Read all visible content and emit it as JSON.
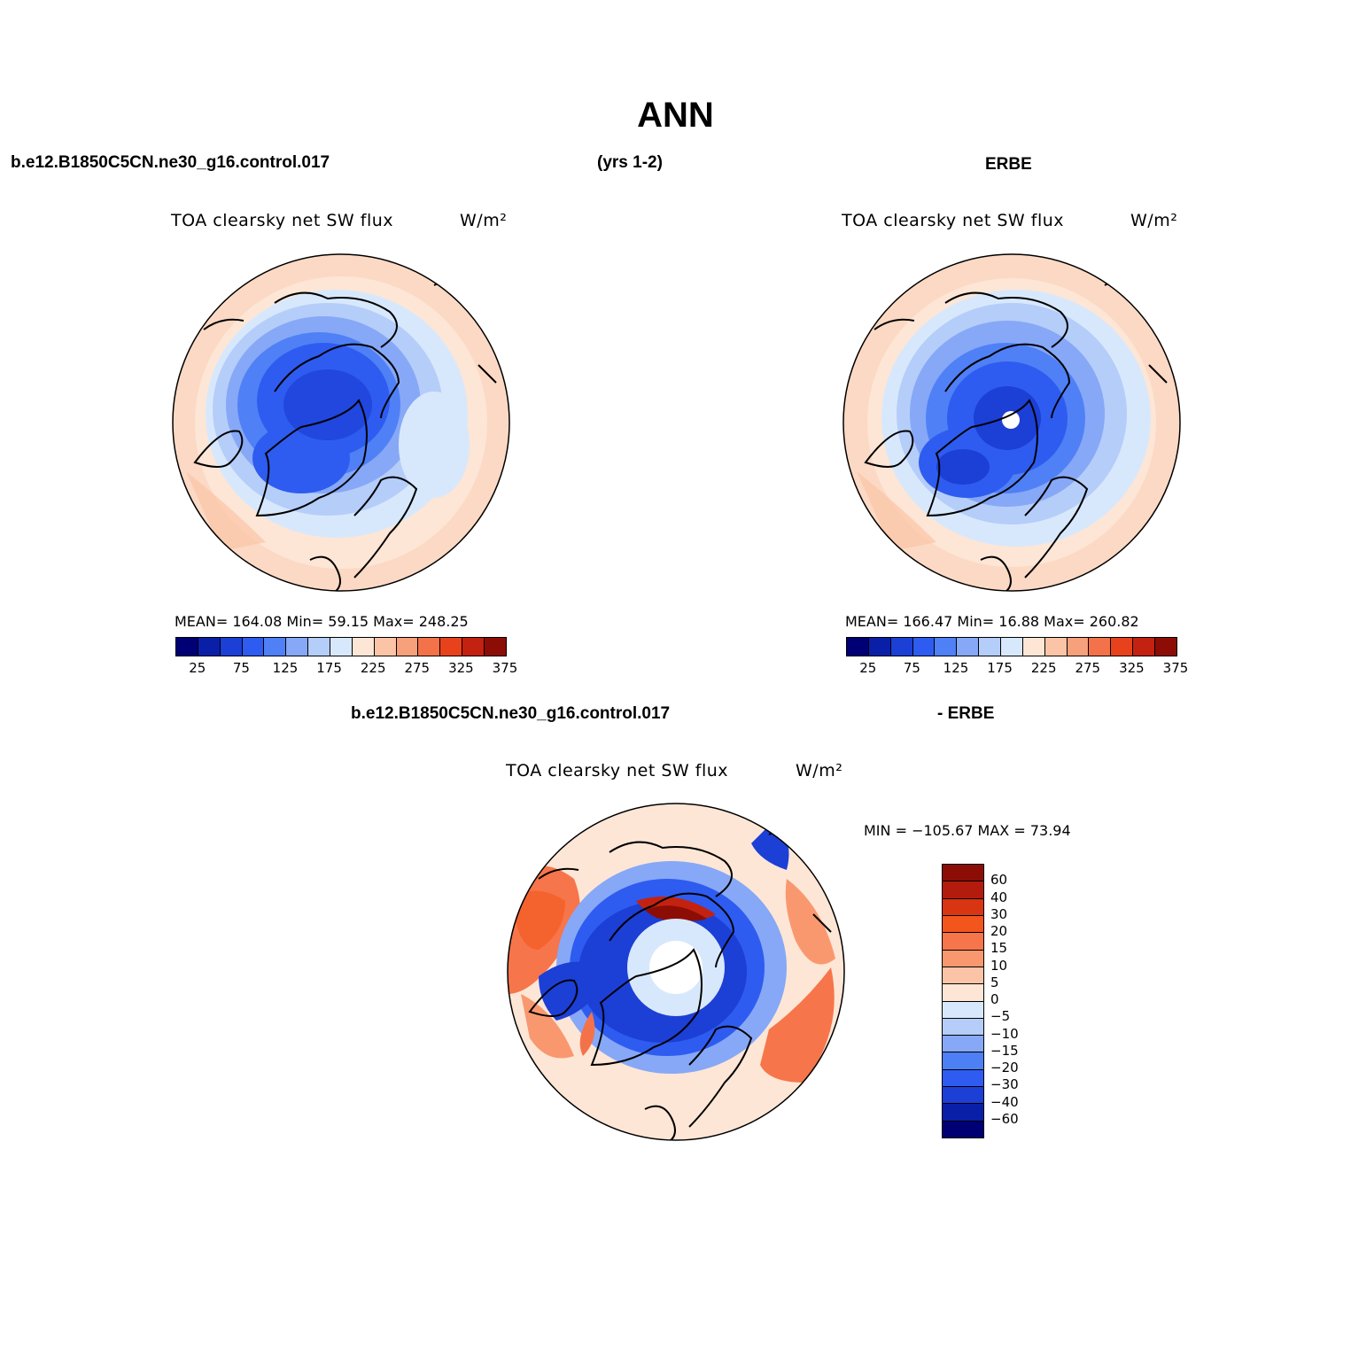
{
  "title": "ANN",
  "case_name": "b.e12.B1850C5CN.ne30_g16.control.017",
  "years": "(yrs 1-2)",
  "obs_name": "ERBE",
  "diff": {
    "case_name": "b.e12.B1850C5CN.ne30_g16.control.017",
    "obs_label": "- ERBE"
  },
  "panels": {
    "model": {
      "variable": "TOA  clearsky  net  SW  flux",
      "units": "W/m²",
      "stats": "MEAN=  164.08    Min=    59.15    Max=  248.25"
    },
    "obs": {
      "variable": "TOA  clearsky  net  SW  flux",
      "units": "W/m²",
      "stats": "MEAN=  166.47    Min=    16.88    Max=  260.82"
    },
    "difference": {
      "variable": "TOA  clearsky  net  SW  flux",
      "units": "W/m²",
      "minmax": "MIN  =  −105.67  MAX  =    73.94"
    }
  },
  "abs_colorbar": {
    "colors": [
      "#000074",
      "#0a1fa8",
      "#1c3fd6",
      "#2e5cf0",
      "#5080f5",
      "#86a8f7",
      "#b5cdf9",
      "#d8e8fc",
      "#fde6d6",
      "#fbc4a7",
      "#f7a07c",
      "#f4724a",
      "#e8421d",
      "#c42210",
      "#8c0d06"
    ],
    "labels": [
      "25",
      "75",
      "125",
      "175",
      "225",
      "275",
      "325",
      "375"
    ]
  },
  "diff_colorbar": {
    "colors": [
      "#8c0d06",
      "#b31c0c",
      "#d93512",
      "#f2561d",
      "#f7754a",
      "#f9986f",
      "#fcc4a6",
      "#fde6d6",
      "#d8e8fc",
      "#b5cdf9",
      "#86a8f7",
      "#4d7ff5",
      "#2e5cf0",
      "#1c3fd6",
      "#0a1fa8",
      "#000074"
    ],
    "labels": [
      "60",
      "40",
      "30",
      "20",
      "15",
      "10",
      "5",
      "0",
      "−5",
      "−10",
      "−15",
      "−20",
      "−30",
      "−40",
      "−60"
    ]
  }
}
